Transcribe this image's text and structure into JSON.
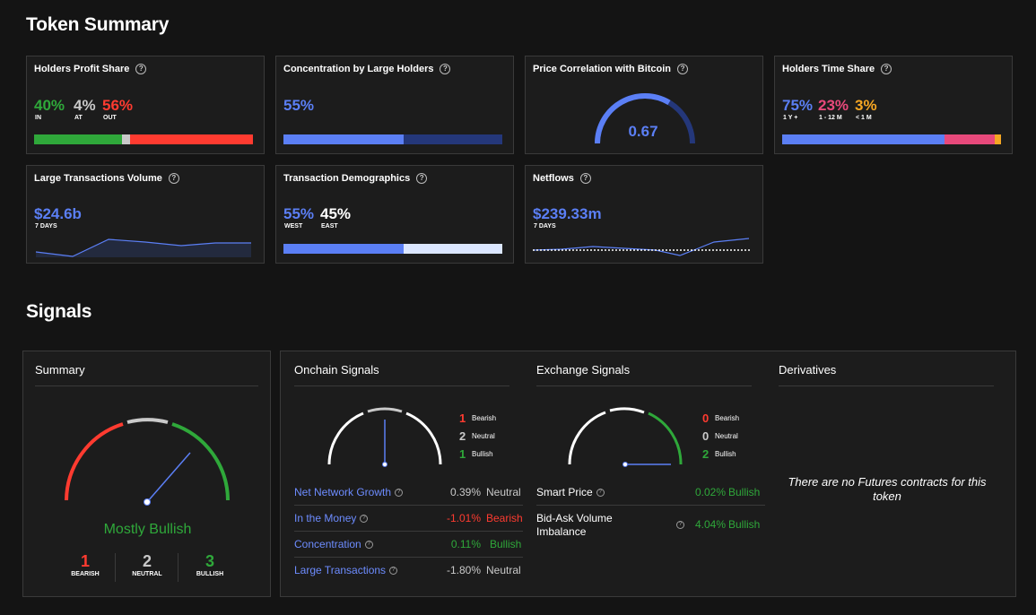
{
  "token_summary": {
    "title": "Token Summary",
    "holders_profit": {
      "title": "Holders Profit Share",
      "in_val": "40%",
      "in_lbl": "IN",
      "at_val": "4%",
      "at_lbl": "AT",
      "out_val": "56%",
      "out_lbl": "OUT",
      "in_pct": 40,
      "at_pct": 4,
      "out_pct": 56
    },
    "concentration": {
      "title": "Concentration by Large Holders",
      "val": "55%",
      "pct": 55
    },
    "correlation": {
      "title": "Price Correlation with Bitcoin",
      "val": "0.67",
      "level": 0.67
    },
    "time_share": {
      "title": "Holders Time Share",
      "a_val": "75%",
      "a_lbl": "1 Y +",
      "b_val": "23%",
      "b_lbl": "1 - 12 M",
      "c_val": "3%",
      "c_lbl": "< 1 M",
      "a_pct": 75,
      "b_pct": 23,
      "c_pct": 3
    },
    "large_tx": {
      "title": "Large Transactions Volume",
      "val": "$24.6b",
      "period": "7 DAYS"
    },
    "demographics": {
      "title": "Transaction Demographics",
      "west_val": "55%",
      "west_lbl": "WEST",
      "east_val": "45%",
      "east_lbl": "EAST",
      "west_pct": 55
    },
    "netflows": {
      "title": "Netflows",
      "val": "$239.33m",
      "period": "7 DAYS"
    }
  },
  "signals": {
    "title": "Signals",
    "summary": {
      "title": "Summary",
      "verdict": "Mostly Bullish",
      "bearish_n": "1",
      "bearish_lbl": "BEARISH",
      "neutral_n": "2",
      "neutral_lbl": "NEUTRAL",
      "bullish_n": "3",
      "bullish_lbl": "BULLISH"
    },
    "onchain": {
      "title": "Onchain Signals",
      "bearish_n": "1",
      "bearish_lbl": "Bearish",
      "neutral_n": "2",
      "neutral_lbl": "Neutral",
      "bullish_n": "1",
      "bullish_lbl": "Bullish",
      "rows": [
        {
          "name": "Net Network Growth",
          "value": "0.39%",
          "verdict": "Neutral"
        },
        {
          "name": "In the Money",
          "value": "-1.01%",
          "verdict": "Bearish"
        },
        {
          "name": "Concentration",
          "value": "0.11%",
          "verdict": "Bullish"
        },
        {
          "name": "Large Transactions",
          "value": "-1.80%",
          "verdict": "Neutral"
        }
      ]
    },
    "exchange": {
      "title": "Exchange Signals",
      "bearish_n": "0",
      "bearish_lbl": "Bearish",
      "neutral_n": "0",
      "neutral_lbl": "Neutral",
      "bullish_n": "2",
      "bullish_lbl": "Bullish",
      "rows": [
        {
          "name": "Smart Price",
          "value": "0.02%",
          "verdict": "Bullish"
        },
        {
          "name": "Bid-Ask Volume Imbalance",
          "value": "4.04%",
          "verdict": "Bullish"
        }
      ]
    },
    "derivatives": {
      "title": "Derivatives",
      "empty_msg": "There are no Futures contracts for this token"
    }
  },
  "colors": {
    "green": "#2fa83a",
    "red": "#ff3b30",
    "blue": "#5b7ff5",
    "pink": "#e8497b",
    "orange": "#f5a623",
    "bg": "#141414"
  }
}
